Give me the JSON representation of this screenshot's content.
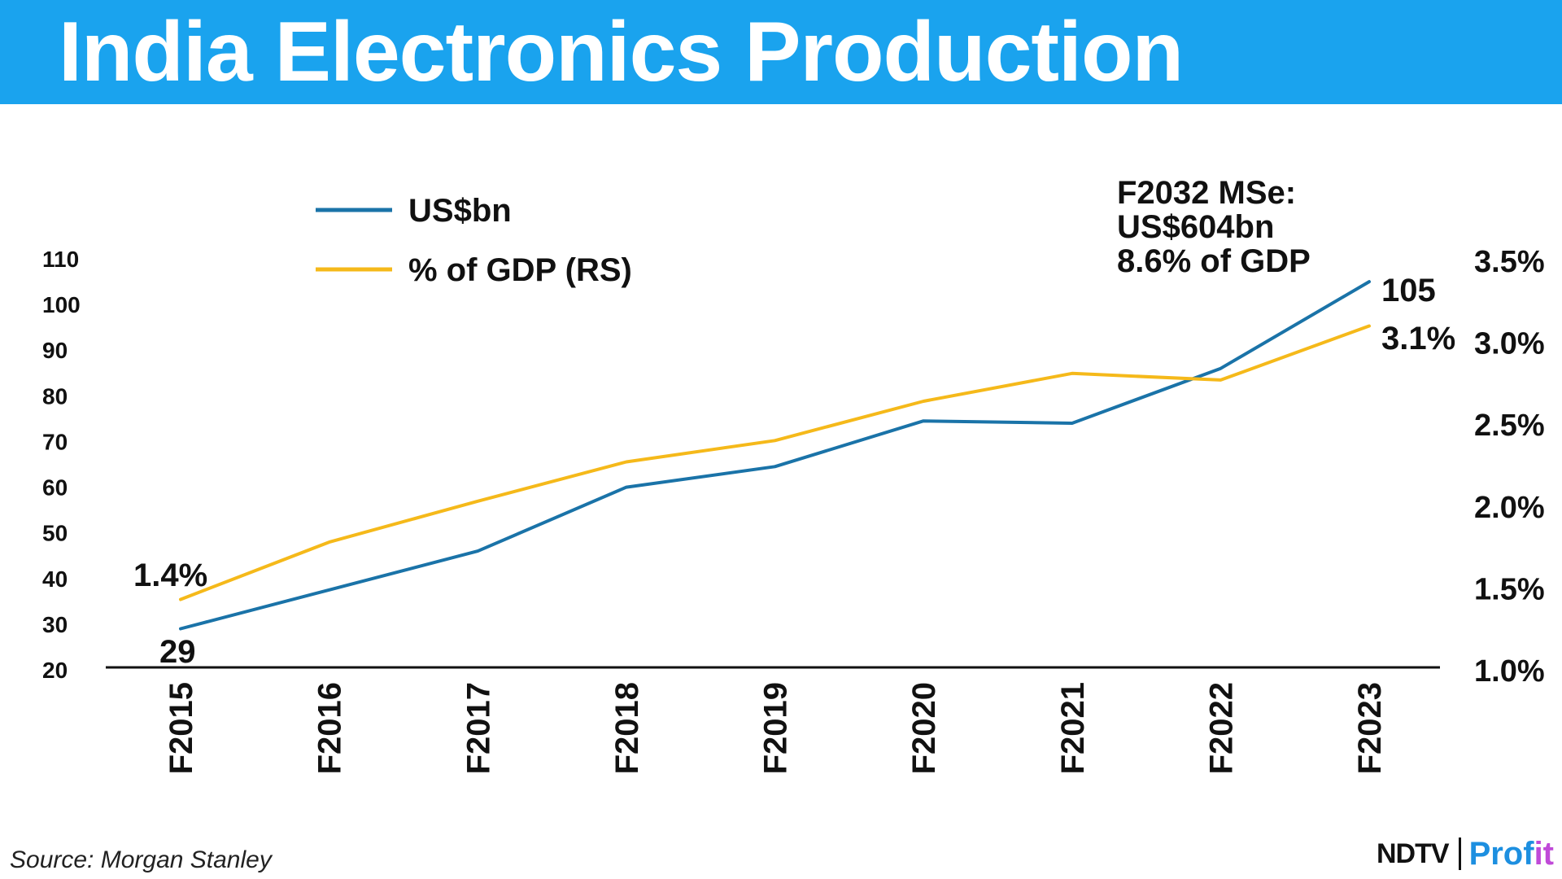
{
  "header": {
    "title": "India Electronics Production"
  },
  "chart_data": {
    "type": "line",
    "title": "India Electronics Production",
    "categories": [
      "F2015",
      "F2016",
      "F2017",
      "F2018",
      "F2019",
      "F2020",
      "F2021",
      "F2022",
      "F2023"
    ],
    "series": [
      {
        "name": "US$bn",
        "axis": "left",
        "color": "#1a73a8",
        "values": [
          29,
          37.5,
          46,
          60,
          64.5,
          74.5,
          74,
          86,
          105
        ]
      },
      {
        "name": "% of GDP (RS)",
        "axis": "right",
        "color": "#f5b91a",
        "values": [
          1.43,
          1.78,
          2.03,
          2.27,
          2.4,
          2.64,
          2.81,
          2.77,
          3.1
        ]
      }
    ],
    "left_axis": {
      "ylim": [
        20,
        110
      ],
      "ticks": [
        "20",
        "30",
        "40",
        "50",
        "60",
        "70",
        "80",
        "90",
        "100",
        "110"
      ]
    },
    "right_axis": {
      "ylim": [
        1.0,
        3.5
      ],
      "ticks": [
        "1.0%",
        "1.5%",
        "2.0%",
        "2.5%",
        "3.0%",
        "3.5%"
      ]
    },
    "data_labels": {
      "start_usd": "29",
      "start_gdp": "1.4%",
      "end_usd": "105",
      "end_gdp": "3.1%"
    },
    "annotation": [
      "F2032 MSe:",
      "US$604bn",
      "8.6% of GDP"
    ],
    "legend_position": "top-left",
    "grid": false
  },
  "footer": {
    "source": "Source: Morgan Stanley",
    "brand_ndtv": "NDTV",
    "brand_profit_a": "Prof",
    "brand_profit_b": "it"
  }
}
